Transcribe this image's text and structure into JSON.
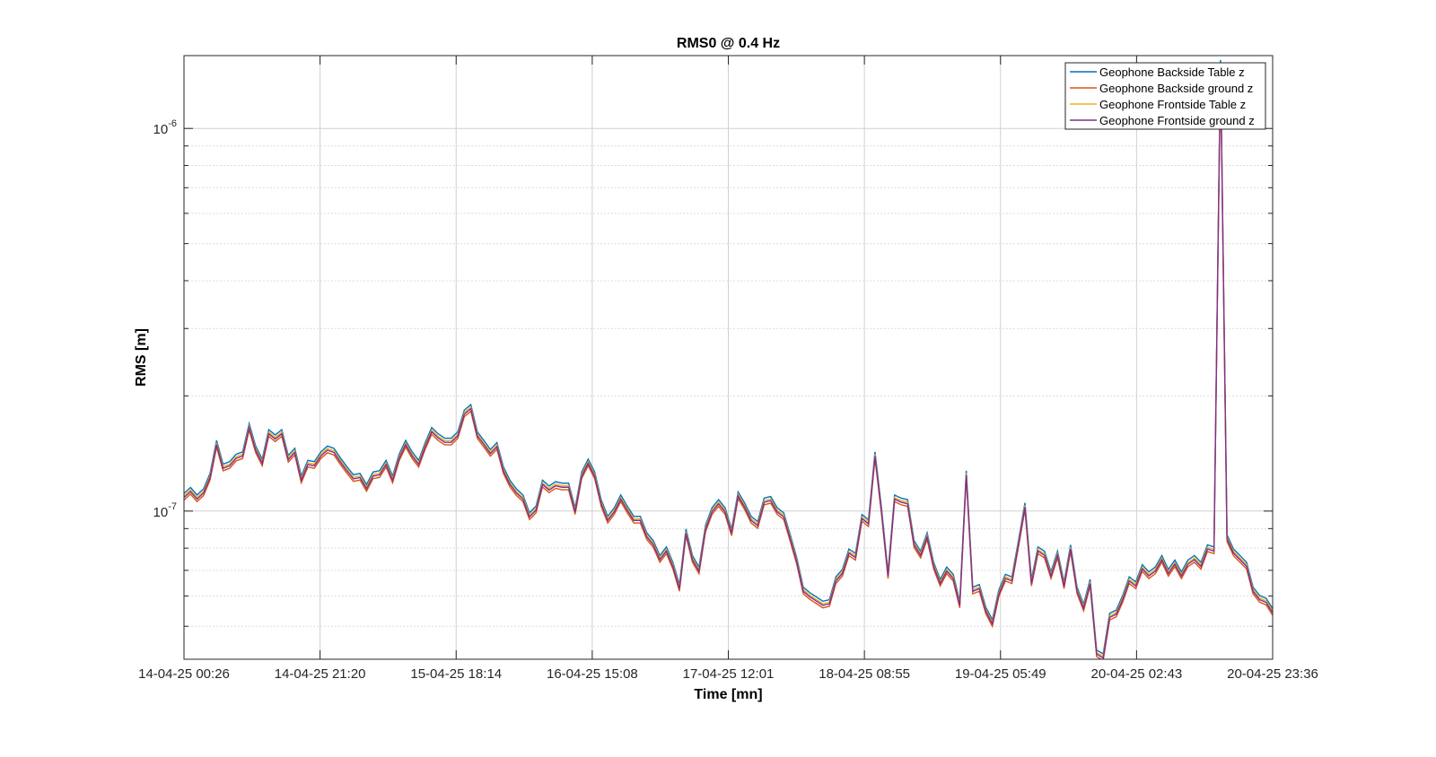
{
  "chart_data": {
    "type": "line",
    "title": "RMS0 @ 0.4 Hz",
    "xlabel": "Time [mn]",
    "ylabel": "RMS [m]",
    "yscale": "log",
    "ylim": [
      4.1e-08,
      1.55e-06
    ],
    "grid": true,
    "minor_grid": true,
    "legend_position": "top-right",
    "x_ticks": [
      "14-04-25 00:26",
      "14-04-25 21:20",
      "15-04-25 18:14",
      "16-04-25 15:08",
      "17-04-25 12:01",
      "18-04-25 08:55",
      "19-04-25 05:49",
      "20-04-25 02:43",
      "20-04-25 23:36"
    ],
    "y_ticks": [
      {
        "value": 1e-07,
        "base": "10",
        "exp": "-7"
      },
      {
        "value": 1e-06,
        "base": "10",
        "exp": "-6"
      }
    ],
    "x_unit": "hours since 14-04-25 00:26 (one sample per hour)",
    "base_series": [
      1.09e-07,
      1.13e-07,
      1.08e-07,
      1.12e-07,
      1.23e-07,
      1.5e-07,
      1.3e-07,
      1.32e-07,
      1.38e-07,
      1.4e-07,
      1.66e-07,
      1.45e-07,
      1.34e-07,
      1.6e-07,
      1.55e-07,
      1.6e-07,
      1.37e-07,
      1.43e-07,
      1.21e-07,
      1.33e-07,
      1.32e-07,
      1.4e-07,
      1.45e-07,
      1.43e-07,
      1.35e-07,
      1.28e-07,
      1.22e-07,
      1.23e-07,
      1.15e-07,
      1.24e-07,
      1.25e-07,
      1.33e-07,
      1.21e-07,
      1.38e-07,
      1.5e-07,
      1.4e-07,
      1.33e-07,
      1.48e-07,
      1.62e-07,
      1.56e-07,
      1.52e-07,
      1.52e-07,
      1.58e-07,
      1.8e-07,
      1.86e-07,
      1.58e-07,
      1.5e-07,
      1.42e-07,
      1.48e-07,
      1.28e-07,
      1.18e-07,
      1.12e-07,
      1.08e-07,
      9.7e-08,
      1.01e-07,
      1.18e-07,
      1.14e-07,
      1.17e-07,
      1.16e-07,
      1.16e-07,
      1e-07,
      1.24e-07,
      1.34e-07,
      1.24e-07,
      1.05e-07,
      9.5e-08,
      1e-07,
      1.08e-07,
      1.01e-07,
      9.5e-08,
      9.5e-08,
      8.6e-08,
      8.2e-08,
      7.5e-08,
      7.9e-08,
      7.2e-08,
      6.3e-08,
      8.8e-08,
      7.5e-08,
      7e-08,
      9e-08,
      1e-07,
      1.05e-07,
      1e-07,
      8.8e-08,
      1.1e-07,
      1.03e-07,
      9.5e-08,
      9.2e-08,
      1.06e-07,
      1.07e-07,
      1e-07,
      9.7e-08,
      8.5e-08,
      7.4e-08,
      6.2e-08,
      6e-08,
      5.85e-08,
      5.7e-08,
      5.75e-08,
      6.6e-08,
      6.9e-08,
      7.8e-08,
      7.6e-08,
      9.6e-08,
      9.3e-08,
      1.4e-07,
      1e-07,
      6.8e-08,
      1.08e-07,
      1.06e-07,
      1.05e-07,
      8.2e-08,
      7.7e-08,
      8.6e-08,
      7.2e-08,
      6.5e-08,
      7e-08,
      6.7e-08,
      5.7e-08,
      1.25e-07,
      6.2e-08,
      6.3e-08,
      5.5e-08,
      5.1e-08,
      6.1e-08,
      6.7e-08,
      6.6e-08,
      8.2e-08,
      1.03e-07,
      6.5e-08,
      7.9e-08,
      7.7e-08,
      6.8e-08,
      7.7e-08,
      6.4e-08,
      8e-08,
      6.2e-08,
      5.6e-08,
      6.5e-08,
      4.25e-08,
      4.15e-08,
      5.3e-08,
      5.4e-08,
      5.9e-08,
      6.6e-08,
      6.4e-08,
      7.1e-08,
      6.8e-08,
      7e-08,
      7.5e-08,
      6.9e-08,
      7.3e-08,
      6.8e-08,
      7.3e-08,
      7.5e-08,
      7.2e-08,
      8e-08,
      7.9e-08,
      1.48e-06,
      8.5e-08,
      7.8e-08,
      7.5e-08,
      7.2e-08,
      6.2e-08,
      5.9e-08,
      5.8e-08,
      5.45e-08
    ],
    "series": [
      {
        "name": "Geophone Backside Table z",
        "color": "#0072BD",
        "scale": 1.02
      },
      {
        "name": "Geophone Backside ground z",
        "color": "#D95319",
        "scale": 0.98
      },
      {
        "name": "Geophone Frontside Table z",
        "color": "#EDB120",
        "scale": 1.005
      },
      {
        "name": "Geophone Frontside ground z",
        "color": "#7E2F8E",
        "scale": 0.995
      }
    ]
  }
}
